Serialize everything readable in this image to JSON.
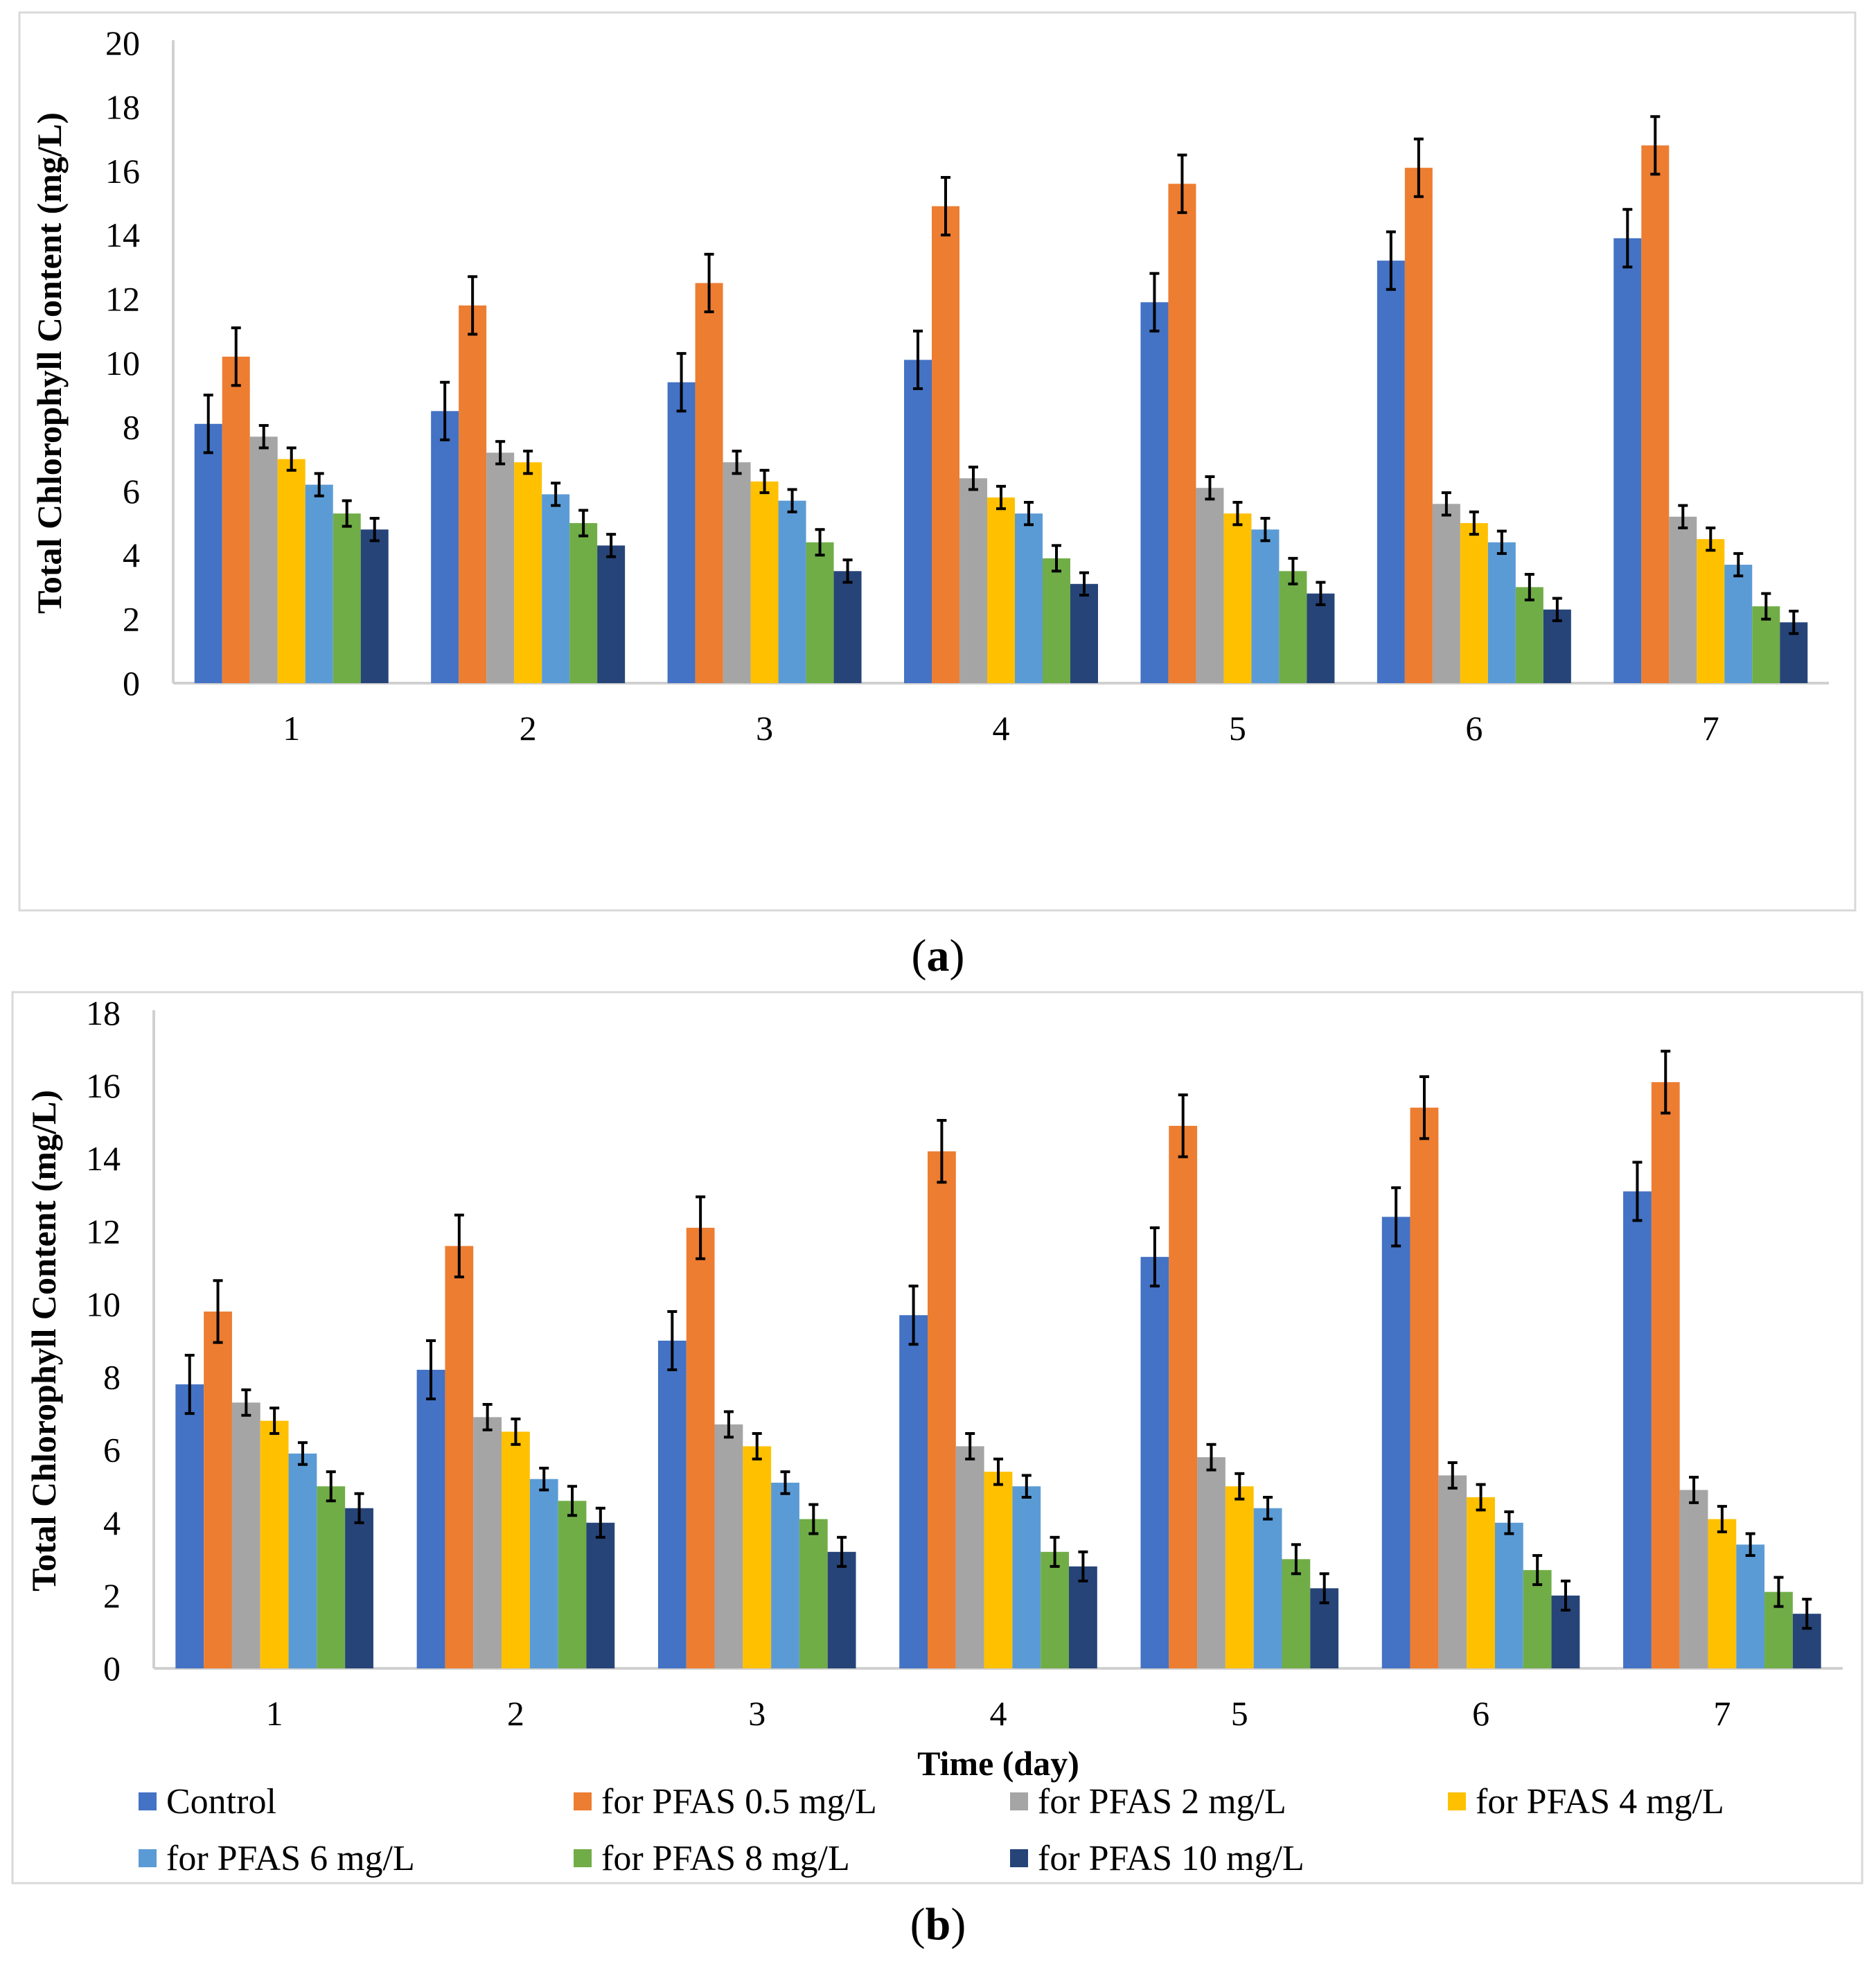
{
  "chart_data": [
    {
      "panel": "a",
      "type": "bar",
      "caption": "a",
      "ylabel": "Total Chlorophyll Content (mg/L)",
      "xlabel": "",
      "ylim": [
        0,
        20
      ],
      "yticks": [
        0,
        2,
        4,
        6,
        8,
        10,
        12,
        14,
        16,
        18,
        20
      ],
      "categories": [
        "1",
        "2",
        "3",
        "4",
        "5",
        "6",
        "7"
      ],
      "series": [
        {
          "name": "Control",
          "color": "#4472C4",
          "values": [
            8.1,
            8.5,
            9.4,
            10.1,
            11.9,
            13.2,
            13.9
          ],
          "errors": [
            0.9,
            0.9,
            0.9,
            0.9,
            0.9,
            0.9,
            0.9
          ]
        },
        {
          "name": "for PFAS 0.5 mg/L",
          "color": "#ED7D31",
          "values": [
            10.2,
            11.8,
            12.5,
            14.9,
            15.6,
            16.1,
            16.8
          ],
          "errors": [
            0.9,
            0.9,
            0.9,
            0.9,
            0.9,
            0.9,
            0.9
          ]
        },
        {
          "name": "for PFAS 2 mg/L",
          "color": "#A5A5A5",
          "values": [
            7.7,
            7.2,
            6.9,
            6.4,
            6.1,
            5.6,
            5.2
          ],
          "errors": [
            0.35,
            0.35,
            0.35,
            0.35,
            0.35,
            0.35,
            0.35
          ]
        },
        {
          "name": "for PFAS 4 mg/L",
          "color": "#FFC000",
          "values": [
            7.0,
            6.9,
            6.3,
            5.8,
            5.3,
            5.0,
            4.5
          ],
          "errors": [
            0.35,
            0.35,
            0.35,
            0.35,
            0.35,
            0.35,
            0.35
          ]
        },
        {
          "name": "for PFAS 6 mg/L",
          "color": "#5B9BD5",
          "values": [
            6.2,
            5.9,
            5.7,
            5.3,
            4.8,
            4.4,
            3.7
          ],
          "errors": [
            0.35,
            0.35,
            0.35,
            0.35,
            0.35,
            0.35,
            0.35
          ]
        },
        {
          "name": "for PFAS 8 mg/L",
          "color": "#70AD47",
          "values": [
            5.3,
            5.0,
            4.4,
            3.9,
            3.5,
            3.0,
            2.4
          ],
          "errors": [
            0.4,
            0.4,
            0.4,
            0.4,
            0.4,
            0.4,
            0.4
          ]
        },
        {
          "name": "for PFAS 10 mg/L",
          "color": "#264478",
          "values": [
            4.8,
            4.3,
            3.5,
            3.1,
            2.8,
            2.3,
            1.9
          ],
          "errors": [
            0.35,
            0.35,
            0.35,
            0.35,
            0.35,
            0.35,
            0.35
          ]
        }
      ]
    },
    {
      "panel": "b",
      "type": "bar",
      "caption": "b",
      "ylabel": "Total Chlorophyll Content (mg/L)",
      "xlabel": "Time (day)",
      "ylim": [
        0,
        18
      ],
      "yticks": [
        0,
        2,
        4,
        6,
        8,
        10,
        12,
        14,
        16,
        18
      ],
      "categories": [
        "1",
        "2",
        "3",
        "4",
        "5",
        "6",
        "7"
      ],
      "legend_position": "bottom",
      "series": [
        {
          "name": "Control",
          "color": "#4472C4",
          "values": [
            7.8,
            8.2,
            9.0,
            9.7,
            11.3,
            12.4,
            13.1
          ],
          "errors": [
            0.8,
            0.8,
            0.8,
            0.8,
            0.8,
            0.8,
            0.8
          ]
        },
        {
          "name": "for PFAS 0.5 mg/L",
          "color": "#ED7D31",
          "values": [
            9.8,
            11.6,
            12.1,
            14.2,
            14.9,
            15.4,
            16.1
          ],
          "errors": [
            0.85,
            0.85,
            0.85,
            0.85,
            0.85,
            0.85,
            0.85
          ]
        },
        {
          "name": "for PFAS 2 mg/L",
          "color": "#A5A5A5",
          "values": [
            7.3,
            6.9,
            6.7,
            6.1,
            5.8,
            5.3,
            4.9
          ],
          "errors": [
            0.35,
            0.35,
            0.35,
            0.35,
            0.35,
            0.35,
            0.35
          ]
        },
        {
          "name": "for PFAS 4 mg/L",
          "color": "#FFC000",
          "values": [
            6.8,
            6.5,
            6.1,
            5.4,
            5.0,
            4.7,
            4.1
          ],
          "errors": [
            0.35,
            0.35,
            0.35,
            0.35,
            0.35,
            0.35,
            0.35
          ]
        },
        {
          "name": "for PFAS 6 mg/L",
          "color": "#5B9BD5",
          "values": [
            5.9,
            5.2,
            5.1,
            5.0,
            4.4,
            4.0,
            3.4
          ],
          "errors": [
            0.3,
            0.3,
            0.3,
            0.3,
            0.3,
            0.3,
            0.3
          ]
        },
        {
          "name": "for PFAS 8 mg/L",
          "color": "#70AD47",
          "values": [
            5.0,
            4.6,
            4.1,
            3.2,
            3.0,
            2.7,
            2.1
          ],
          "errors": [
            0.4,
            0.4,
            0.4,
            0.4,
            0.4,
            0.4,
            0.4
          ]
        },
        {
          "name": "for PFAS 10 mg/L",
          "color": "#264478",
          "values": [
            4.4,
            4.0,
            3.2,
            2.8,
            2.2,
            2.0,
            1.5
          ],
          "errors": [
            0.4,
            0.4,
            0.4,
            0.4,
            0.4,
            0.4,
            0.4
          ]
        }
      ]
    }
  ],
  "captions": {
    "a": "a",
    "b": "b"
  }
}
